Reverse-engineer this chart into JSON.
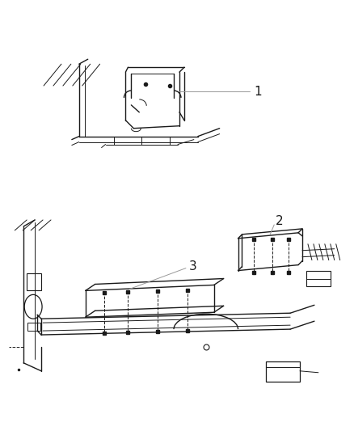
{
  "background_color": "#ffffff",
  "fig_width": 4.38,
  "fig_height": 5.33,
  "dpi": 100,
  "line_color": "#1a1a1a",
  "label_color": "#333333",
  "leader_color": "#999999"
}
